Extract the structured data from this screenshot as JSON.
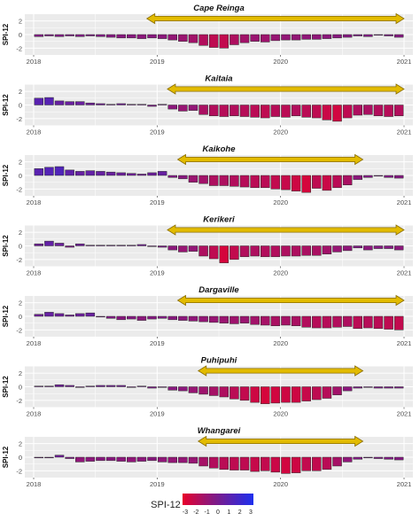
{
  "chart_data": [
    {
      "type": "bar",
      "title": "Cape Reinga",
      "ylabel": "SPI-12",
      "x_ticks": [
        "2018",
        "2019",
        "2020",
        "2021"
      ],
      "y_ticks": [
        "2",
        "0",
        "-2"
      ],
      "ylim": [
        -3,
        3
      ],
      "drought_period": [
        "2018-12",
        "2021-01"
      ],
      "values": [
        -0.3,
        -0.2,
        -0.3,
        -0.2,
        -0.3,
        -0.2,
        -0.3,
        -0.4,
        -0.5,
        -0.5,
        -0.6,
        -0.5,
        -0.6,
        -0.8,
        -1.0,
        -1.2,
        -1.6,
        -1.9,
        -2.0,
        -1.5,
        -1.2,
        -1.0,
        -1.1,
        -0.9,
        -0.8,
        -0.8,
        -0.7,
        -0.7,
        -0.6,
        -0.5,
        -0.4,
        -0.2,
        -0.3,
        -0.1,
        -0.2,
        -0.4
      ]
    },
    {
      "type": "bar",
      "title": "Kaitaia",
      "ylabel": "SPI-12",
      "x_ticks": [
        "2018",
        "2019",
        "2020",
        "2021"
      ],
      "y_ticks": [
        "2",
        "0",
        "-2"
      ],
      "ylim": [
        -3,
        3
      ],
      "drought_period": [
        "2019-02",
        "2021-01"
      ],
      "values": [
        1.0,
        1.1,
        0.6,
        0.5,
        0.5,
        0.3,
        0.2,
        0.1,
        0.2,
        0.1,
        0.1,
        -0.2,
        0.1,
        -0.6,
        -0.9,
        -0.8,
        -1.4,
        -1.6,
        -1.7,
        -1.6,
        -1.7,
        -1.8,
        -1.9,
        -1.7,
        -1.8,
        -1.6,
        -1.8,
        -1.9,
        -2.2,
        -2.4,
        -1.9,
        -1.5,
        -1.4,
        -1.6,
        -1.7,
        -1.6
      ]
    },
    {
      "type": "bar",
      "title": "Kaikohe",
      "ylabel": "SPI-12",
      "x_ticks": [
        "2018",
        "2019",
        "2020",
        "2021"
      ],
      "y_ticks": [
        "2",
        "0",
        "-2"
      ],
      "ylim": [
        -3,
        3
      ],
      "drought_period": [
        "2019-03",
        "2020-09"
      ],
      "values": [
        1.0,
        1.2,
        1.3,
        0.8,
        0.6,
        0.7,
        0.6,
        0.5,
        0.4,
        0.3,
        0.2,
        0.4,
        0.6,
        -0.3,
        -0.5,
        -1.0,
        -1.2,
        -1.5,
        -1.5,
        -1.6,
        -1.7,
        -1.8,
        -1.8,
        -2.0,
        -2.1,
        -2.3,
        -2.5,
        -1.9,
        -2.2,
        -1.8,
        -1.4,
        -0.6,
        -0.3,
        -0.1,
        -0.3,
        -0.4
      ]
    },
    {
      "type": "bar",
      "title": "Kerikeri",
      "ylabel": "SPI-12",
      "x_ticks": [
        "2018",
        "2019",
        "2020",
        "2021"
      ],
      "y_ticks": [
        "2",
        "0",
        "-2"
      ],
      "ylim": [
        -3,
        3
      ],
      "drought_period": [
        "2019-02",
        "2021-01"
      ],
      "values": [
        0.3,
        0.7,
        0.4,
        -0.2,
        0.3,
        0.1,
        0.1,
        0.1,
        0.1,
        0.1,
        0.2,
        -0.1,
        -0.2,
        -0.6,
        -0.9,
        -0.8,
        -1.5,
        -1.9,
        -2.5,
        -2.0,
        -1.6,
        -1.5,
        -1.6,
        -1.6,
        -1.5,
        -1.5,
        -1.4,
        -1.4,
        -1.2,
        -0.9,
        -0.7,
        -0.3,
        -0.6,
        -0.4,
        -0.4,
        -0.6
      ]
    },
    {
      "type": "bar",
      "title": "Dargaville",
      "ylabel": "SPI-12",
      "x_ticks": [
        "2018",
        "2019",
        "2020",
        "2021"
      ],
      "y_ticks": [
        "2",
        "0",
        "-2"
      ],
      "ylim": [
        -3,
        3
      ],
      "drought_period": [
        "2019-03",
        "2021-01"
      ],
      "values": [
        0.3,
        0.6,
        0.4,
        0.2,
        0.4,
        0.5,
        -0.1,
        -0.3,
        -0.5,
        -0.4,
        -0.6,
        -0.4,
        -0.3,
        -0.5,
        -0.6,
        -0.7,
        -0.8,
        -0.9,
        -1.0,
        -1.1,
        -1.0,
        -1.2,
        -1.3,
        -1.4,
        -1.3,
        -1.4,
        -1.6,
        -1.7,
        -1.7,
        -1.6,
        -1.5,
        -1.8,
        -1.7,
        -1.8,
        -1.9,
        -2.0
      ]
    },
    {
      "type": "bar",
      "title": "Puhipuhi",
      "ylabel": "SPI-12",
      "x_ticks": [
        "2018",
        "2019",
        "2020",
        "2021"
      ],
      "y_ticks": [
        "2",
        "0",
        "-2"
      ],
      "ylim": [
        -3,
        3
      ],
      "drought_period": [
        "2019-05",
        "2020-09"
      ],
      "values": [
        0.1,
        0.1,
        0.3,
        0.2,
        -0.1,
        0.1,
        0.2,
        0.2,
        0.2,
        -0.1,
        0.1,
        -0.2,
        -0.1,
        -0.5,
        -0.6,
        -0.9,
        -1.1,
        -1.3,
        -1.5,
        -1.8,
        -2.0,
        -2.3,
        -2.5,
        -2.4,
        -2.3,
        -2.3,
        -2.1,
        -1.9,
        -1.7,
        -1.2,
        -0.6,
        -0.2,
        -0.1,
        -0.2,
        -0.2,
        -0.2
      ]
    },
    {
      "type": "bar",
      "title": "Whangarei",
      "ylabel": "SPI-12",
      "x_ticks": [
        "2018",
        "2019",
        "2020",
        "2021"
      ],
      "y_ticks": [
        "2",
        "0",
        "-2"
      ],
      "ylim": [
        -3,
        3
      ],
      "drought_period": [
        "2019-05",
        "2020-09"
      ],
      "values": [
        -0.1,
        -0.1,
        0.3,
        -0.2,
        -0.7,
        -0.6,
        -0.5,
        -0.5,
        -0.6,
        -0.7,
        -0.6,
        -0.5,
        -0.7,
        -0.8,
        -0.8,
        -0.9,
        -1.3,
        -1.6,
        -1.8,
        -1.9,
        -1.9,
        -2.1,
        -2.0,
        -2.2,
        -2.4,
        -2.3,
        -2.0,
        -2.0,
        -1.8,
        -1.3,
        -0.7,
        -0.3,
        -0.1,
        -0.2,
        -0.3,
        -0.4
      ]
    }
  ],
  "legend": {
    "title": "SPI-12",
    "labels": [
      "-3",
      "-2",
      "-1",
      "0",
      "1",
      "2",
      "3"
    ],
    "colors": [
      "#e8002a",
      "#c20a4e",
      "#9a1470",
      "#781c8e",
      "#5a22b0",
      "#3a28d0",
      "#1f30ee"
    ]
  },
  "colors": {
    "panel_bg": "#ebebeb",
    "grid": "#ffffff",
    "bar_outline": "#2a2a2a",
    "arrow_fill": "#e2bb00",
    "arrow_stroke": "#8a6d00",
    "axis_text": "#4d4d4d"
  }
}
